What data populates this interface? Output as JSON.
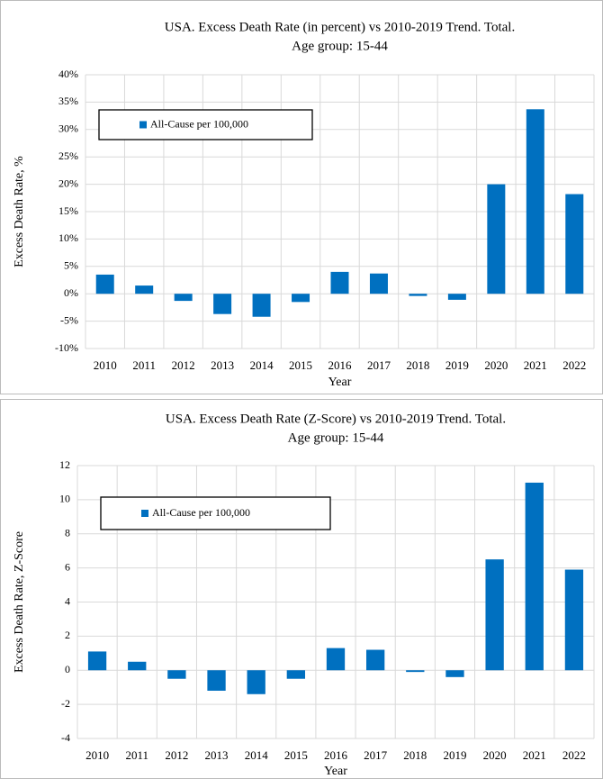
{
  "chart_data": [
    {
      "type": "bar",
      "title": "USA. Excess Death Rate (in percent) vs 2010-2019 Trend. Total.",
      "subtitle": "Age group: 15-44",
      "x_label": "Year",
      "y_label": "Excess Death Rate, %",
      "categories": [
        "2010",
        "2011",
        "2012",
        "2013",
        "2014",
        "2015",
        "2016",
        "2017",
        "2018",
        "2019",
        "2020",
        "2021",
        "2022"
      ],
      "series": [
        {
          "name": "All-Cause per 100,000",
          "color": "#0070c0",
          "values": [
            3.5,
            1.5,
            -1.3,
            -3.7,
            -4.2,
            -1.5,
            4.0,
            3.7,
            -0.4,
            -1.1,
            20.0,
            33.7,
            18.2
          ]
        }
      ],
      "ylim": [
        -10,
        40
      ],
      "yticks": [
        {
          "value": -10,
          "label": "-10%"
        },
        {
          "value": -5,
          "label": "-5%"
        },
        {
          "value": 0,
          "label": "0%"
        },
        {
          "value": 5,
          "label": "5%"
        },
        {
          "value": 10,
          "label": "10%"
        },
        {
          "value": 15,
          "label": "15%"
        },
        {
          "value": 20,
          "label": "20%"
        },
        {
          "value": 25,
          "label": "25%"
        },
        {
          "value": 30,
          "label": "30%"
        },
        {
          "value": 35,
          "label": "35%"
        },
        {
          "value": 40,
          "label": "40%"
        }
      ],
      "grid": true,
      "legend": "upper-left"
    },
    {
      "type": "bar",
      "title": "USA. Excess Death Rate (Z-Score) vs 2010-2019 Trend. Total.",
      "subtitle": "Age group: 15-44",
      "x_label": "Year",
      "y_label": "Excess Death Rate, Z-Score",
      "categories": [
        "2010",
        "2011",
        "2012",
        "2013",
        "2014",
        "2015",
        "2016",
        "2017",
        "2018",
        "2019",
        "2020",
        "2021",
        "2022"
      ],
      "series": [
        {
          "name": "All-Cause per 100,000",
          "color": "#0070c0",
          "values": [
            1.1,
            0.5,
            -0.5,
            -1.2,
            -1.4,
            -0.5,
            1.3,
            1.2,
            -0.1,
            -0.4,
            6.5,
            11.0,
            5.9
          ]
        }
      ],
      "ylim": [
        -4,
        12
      ],
      "yticks": [
        -4,
        -2,
        0,
        2,
        4,
        6,
        8,
        10,
        12
      ],
      "grid": true,
      "legend": "upper-left"
    }
  ]
}
